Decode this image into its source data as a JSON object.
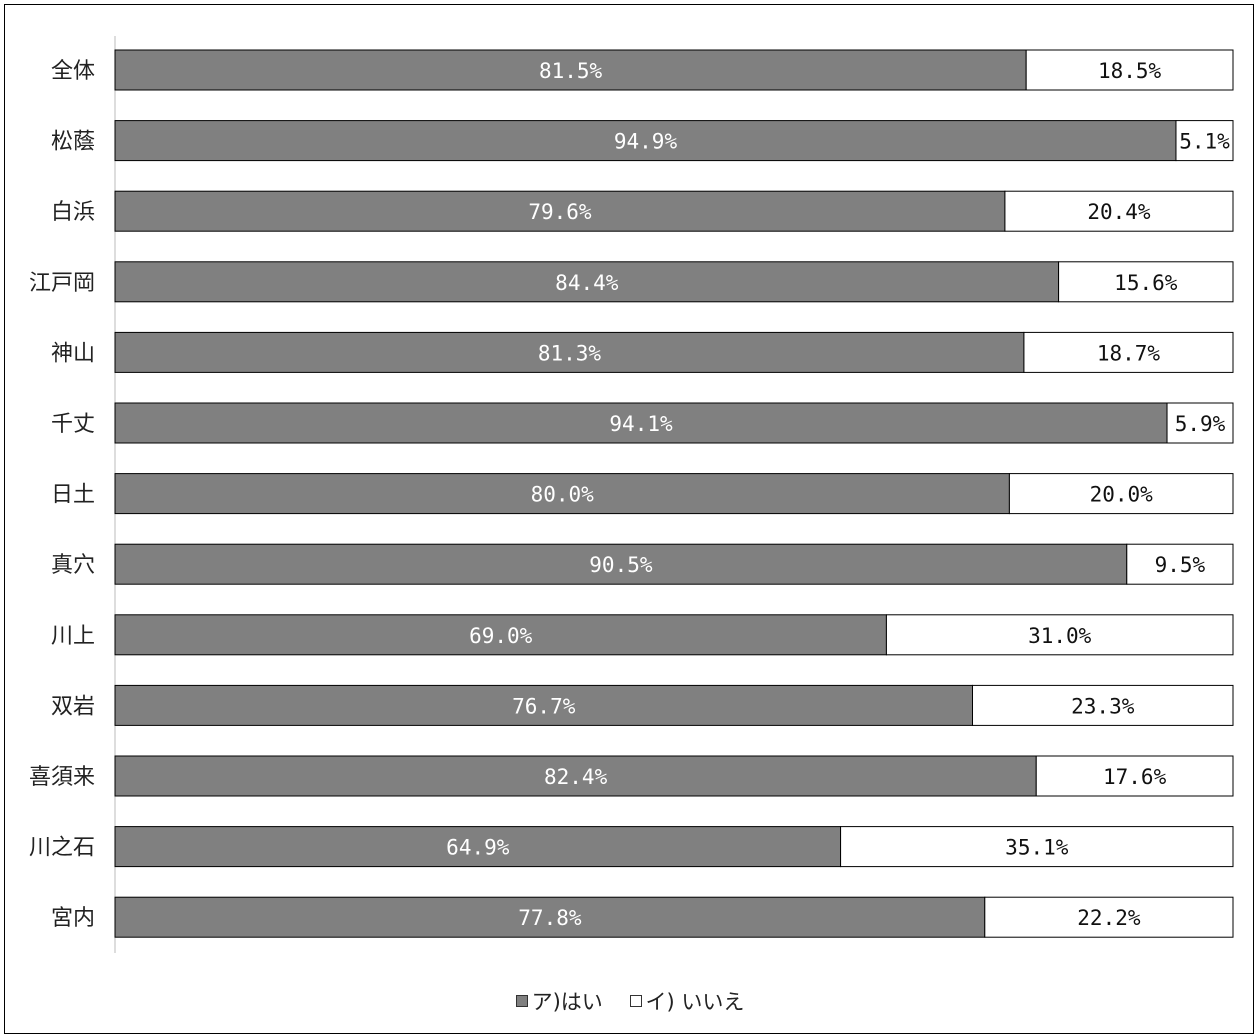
{
  "chart_data": {
    "type": "bar",
    "orientation": "horizontal",
    "stacked": true,
    "percent": true,
    "categories": [
      "全体",
      "松蔭",
      "白浜",
      "江戸岡",
      "神山",
      "千丈",
      "日土",
      "真穴",
      "川上",
      "双岩",
      "喜須来",
      "川之石",
      "宮内"
    ],
    "series": [
      {
        "name": "ア)はい",
        "color": "#808080",
        "values": [
          81.5,
          94.9,
          79.6,
          84.4,
          81.3,
          94.1,
          80.0,
          90.5,
          69.0,
          76.7,
          82.4,
          64.9,
          77.8
        ],
        "labels": [
          "81.5%",
          "94.9%",
          "79.6%",
          "84.4%",
          "81.3%",
          "94.1%",
          "80.0%",
          "90.5%",
          "69.0%",
          "76.7%",
          "82.4%",
          "64.9%",
          "77.8%"
        ]
      },
      {
        "name": "イ) いいえ",
        "color": "#ffffff",
        "values": [
          18.5,
          5.1,
          20.4,
          15.6,
          18.7,
          5.9,
          20.0,
          9.5,
          31.0,
          23.3,
          17.6,
          35.1,
          22.2
        ],
        "labels": [
          "18.5%",
          "5.1%",
          "20.4%",
          "15.6%",
          "18.7%",
          "5.9%",
          "20.0%",
          "9.5%",
          "31.0%",
          "23.3%",
          "17.6%",
          "35.1%",
          "22.2%"
        ]
      }
    ],
    "xlim": [
      0,
      100
    ],
    "grid": false,
    "legend_position": "bottom"
  }
}
